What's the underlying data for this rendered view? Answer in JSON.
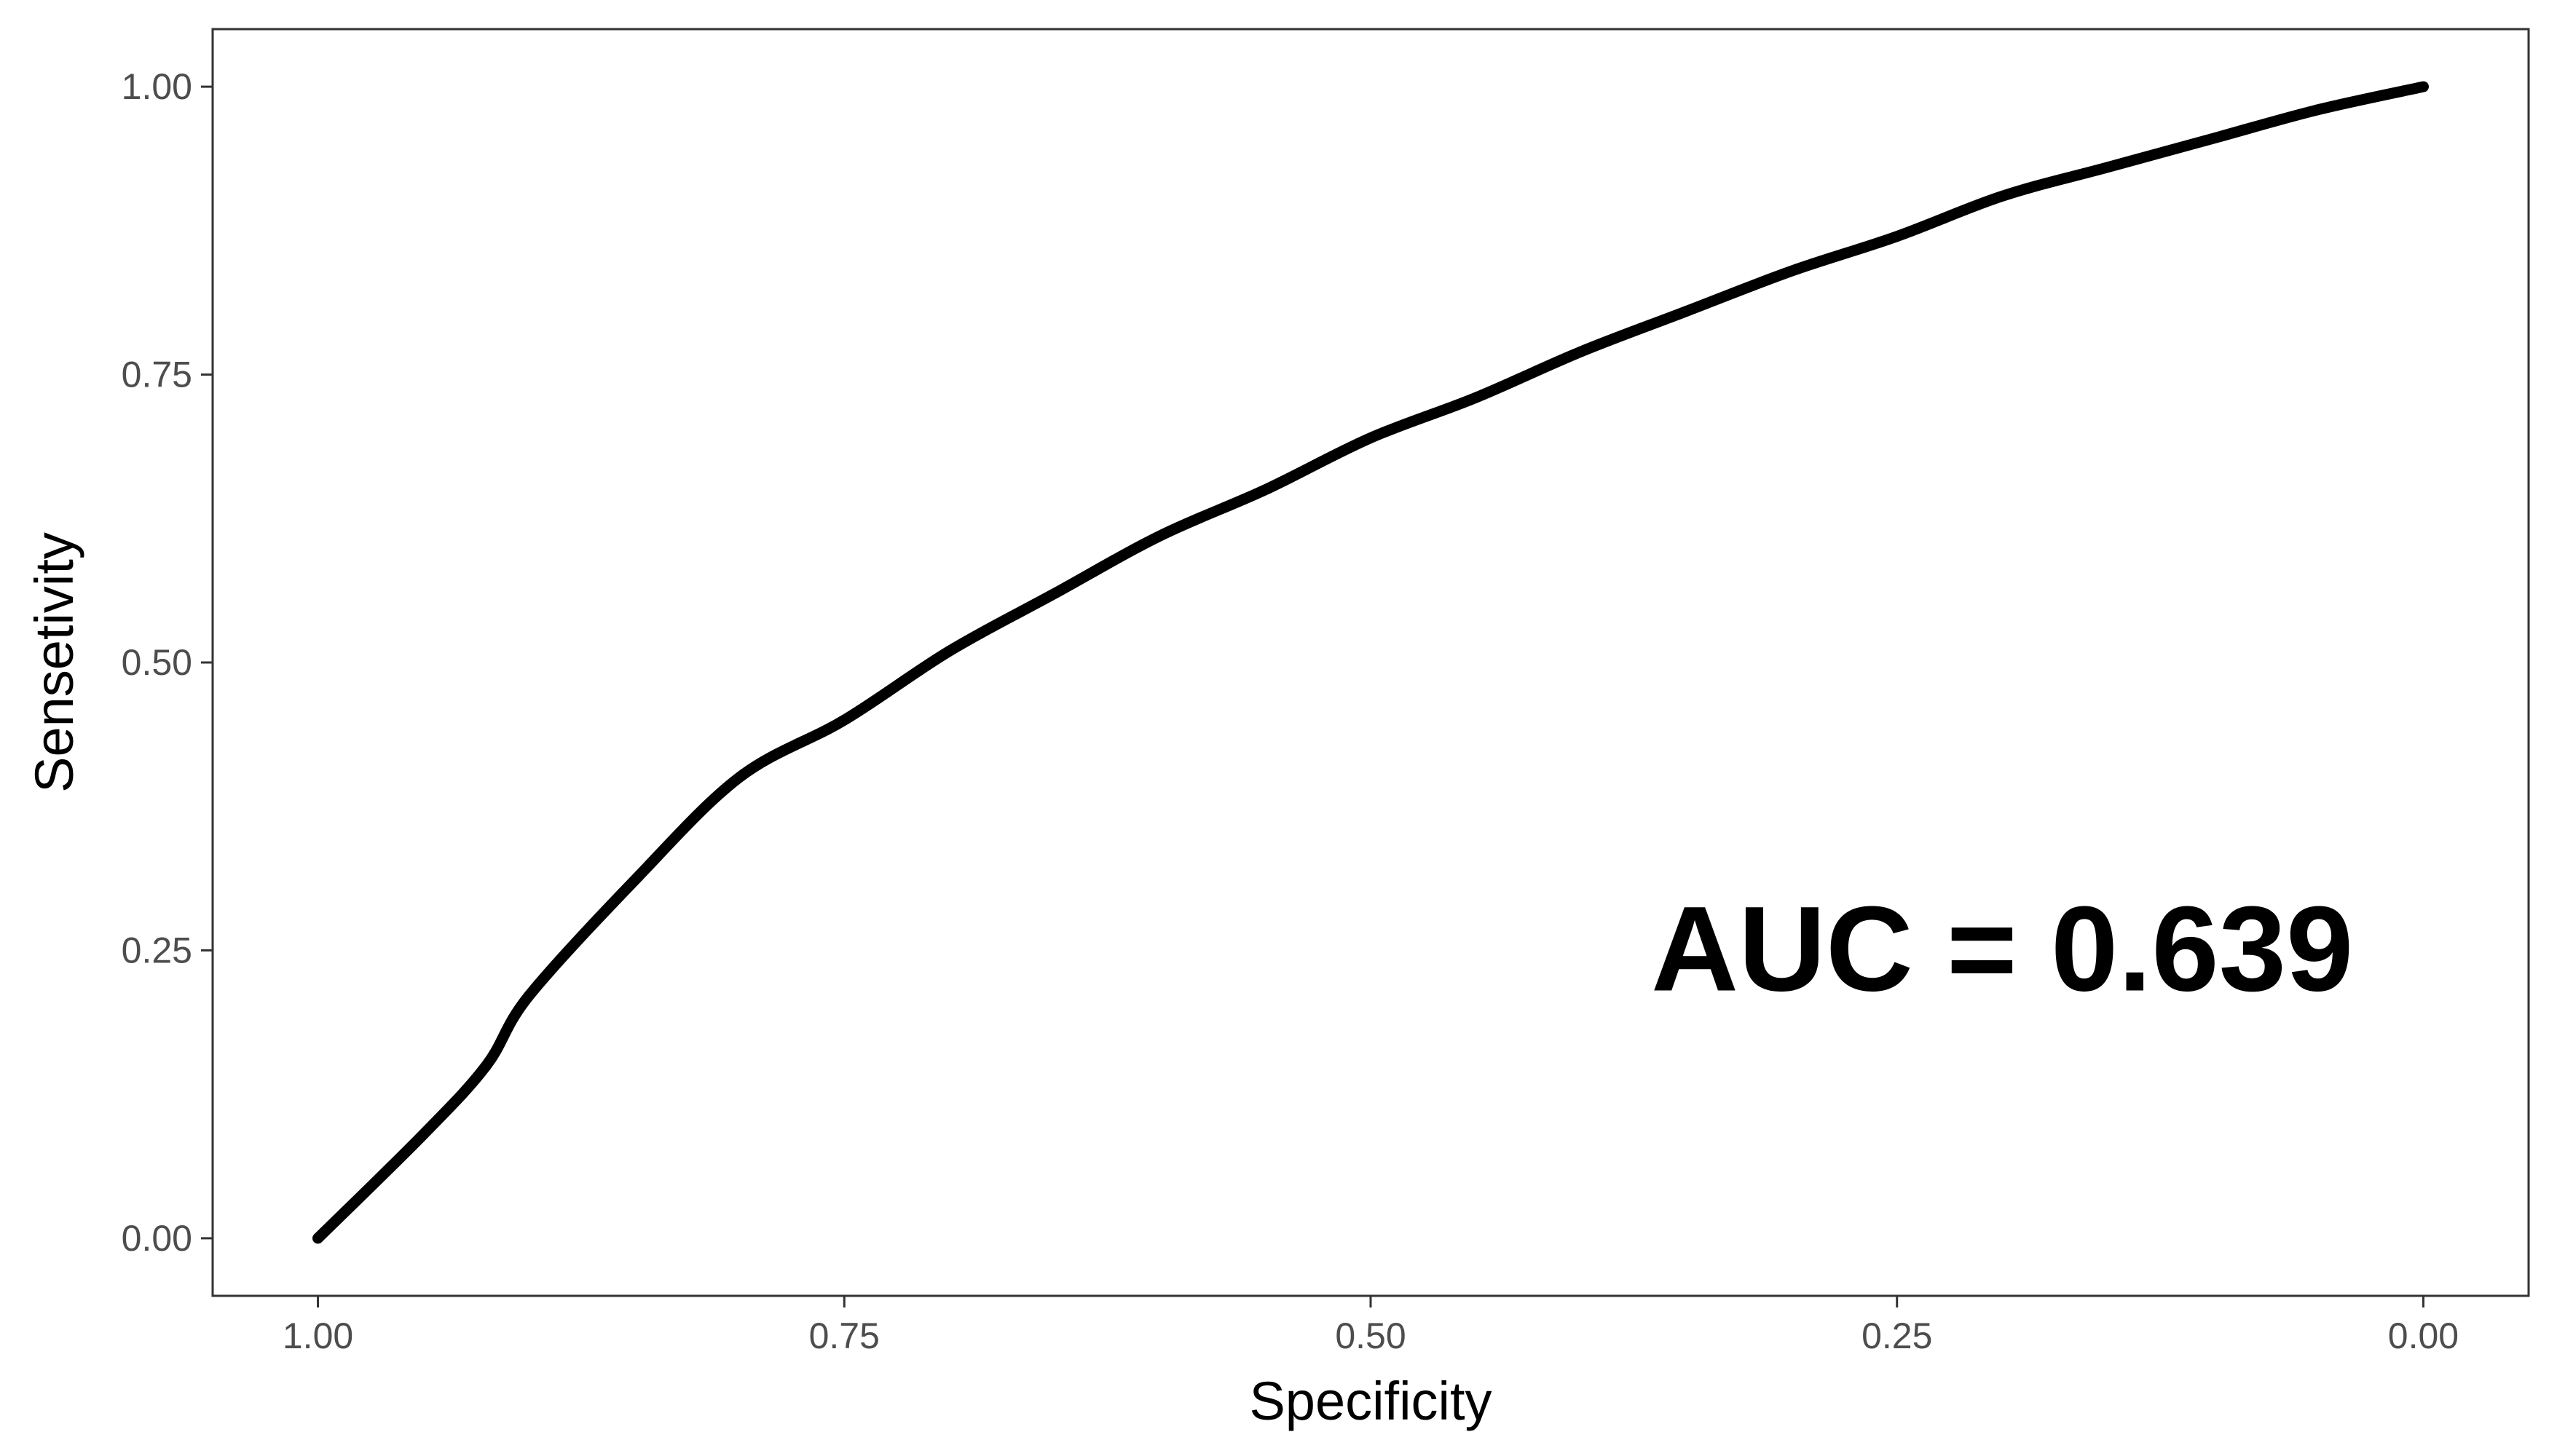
{
  "chart_data": {
    "type": "line",
    "title": "",
    "xlabel": "Specificity",
    "ylabel": "Sensetivity",
    "x_reversed": true,
    "xlim": [
      1.05,
      -0.05
    ],
    "ylim": [
      -0.05,
      1.05
    ],
    "x_ticks": [
      1.0,
      0.75,
      0.5,
      0.25,
      0.0
    ],
    "x_tick_labels": [
      "1.00",
      "0.75",
      "0.50",
      "0.25",
      "0.00"
    ],
    "y_ticks": [
      0.0,
      0.25,
      0.5,
      0.75,
      1.0
    ],
    "y_tick_labels": [
      "0.00",
      "0.25",
      "0.50",
      "0.75",
      "1.00"
    ],
    "grid": false,
    "annotation": {
      "text": "AUC = 0.639",
      "x": 0.2,
      "y": 0.25
    },
    "series": [
      {
        "color": "#000000",
        "x": [
          1.0,
          0.95,
          0.92,
          0.9,
          0.85,
          0.8,
          0.75,
          0.7,
          0.65,
          0.6,
          0.55,
          0.5,
          0.45,
          0.4,
          0.35,
          0.3,
          0.25,
          0.2,
          0.15,
          0.1,
          0.05,
          0.0
        ],
        "y": [
          0.0,
          0.09,
          0.15,
          0.21,
          0.31,
          0.4,
          0.45,
          0.51,
          0.56,
          0.61,
          0.65,
          0.695,
          0.73,
          0.77,
          0.805,
          0.84,
          0.87,
          0.905,
          0.93,
          0.955,
          0.98,
          1.0
        ]
      }
    ]
  }
}
